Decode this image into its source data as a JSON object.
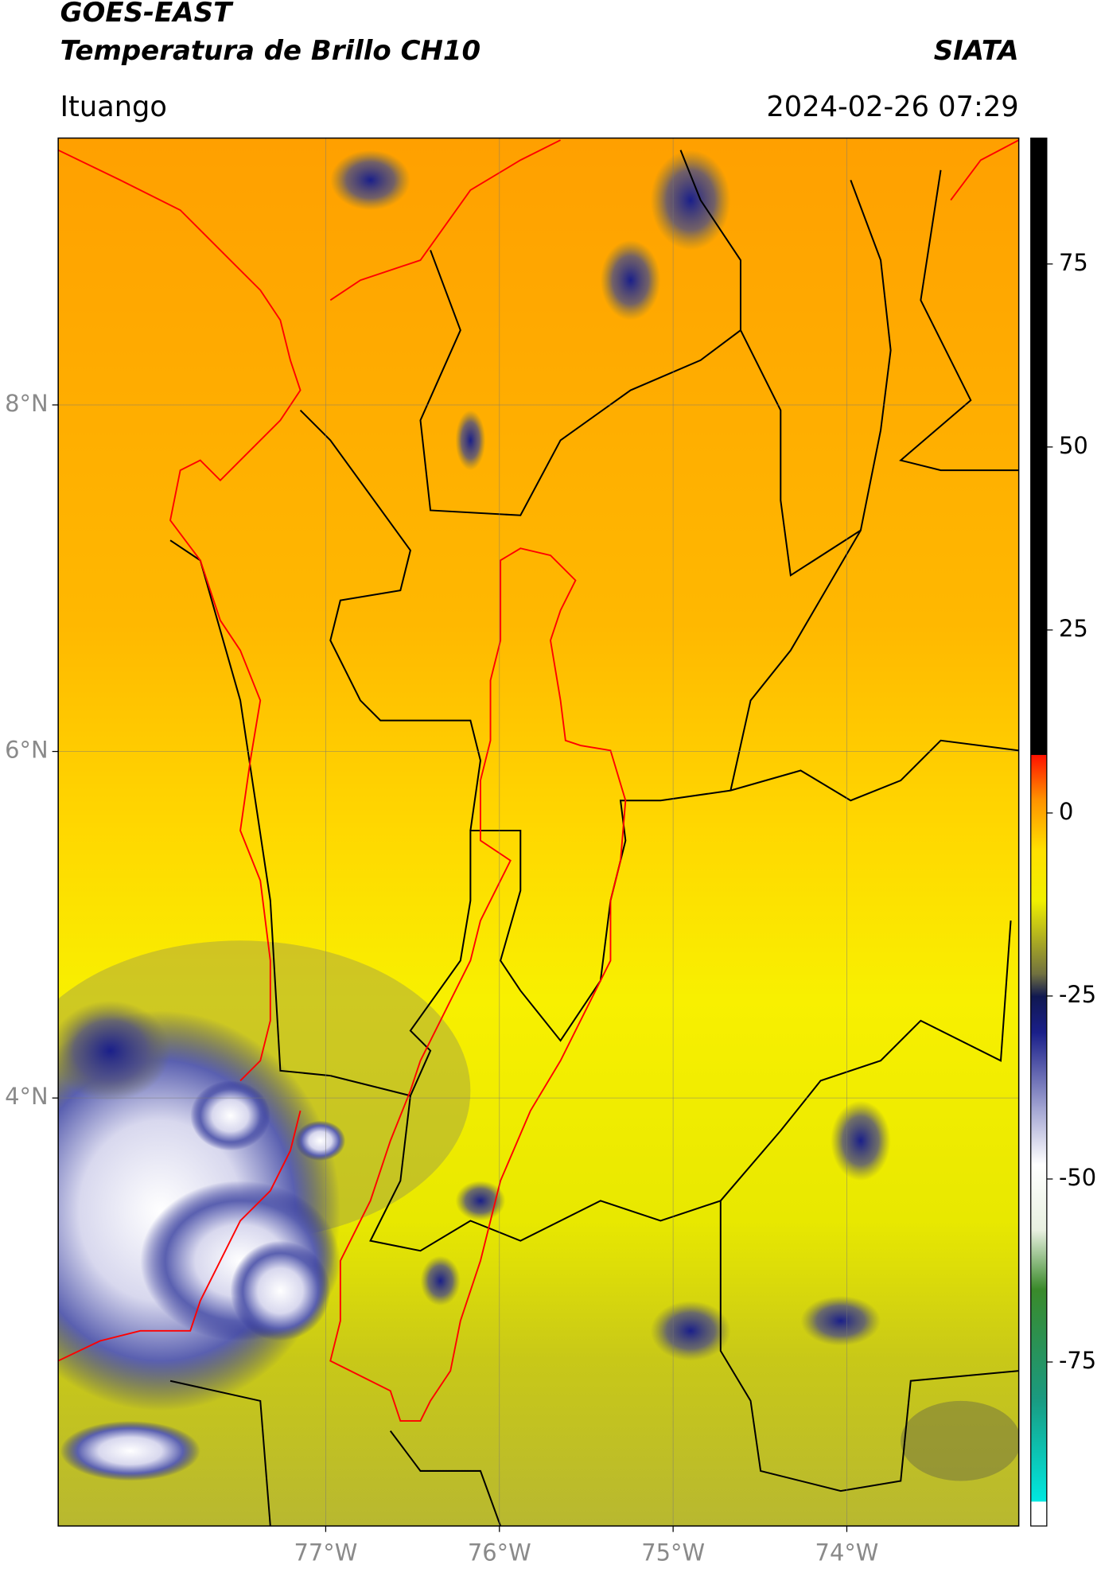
{
  "header": {
    "title": "GOES-EAST",
    "subtitle": "Temperatura de Brillo CH10",
    "source": "SIATA",
    "location": "Ituango",
    "datetime": "2024-02-26 07:29"
  },
  "map": {
    "xlim": [
      -78.54,
      -73.01
    ],
    "ylim": [
      1.53,
      9.54
    ],
    "xticks": [
      {
        "value": -77,
        "label": "77°W"
      },
      {
        "value": -76,
        "label": "76°W"
      },
      {
        "value": -75,
        "label": "75°W"
      },
      {
        "value": -74,
        "label": "74°W"
      }
    ],
    "yticks": [
      {
        "value": 4,
        "label": "4°N"
      },
      {
        "value": 6,
        "label": "6°N"
      },
      {
        "value": 8,
        "label": "8°N"
      }
    ],
    "grid": true
  },
  "colorbar": {
    "lim": [
      -97.4,
      92.2
    ],
    "ticks": [
      -75,
      -50,
      -25,
      0,
      25,
      50,
      75
    ],
    "stops": [
      {
        "value": -97.4,
        "color": "#ffffff"
      },
      {
        "value": -94,
        "color": "#ffffff"
      },
      {
        "value": -94,
        "color": "#00e8e0"
      },
      {
        "value": -80,
        "color": "#1a9a80"
      },
      {
        "value": -65,
        "color": "#3a8a2a"
      },
      {
        "value": -57,
        "color": "#e8f0e0"
      },
      {
        "value": -48,
        "color": "#ffffff"
      },
      {
        "value": -40,
        "color": "#9ea0d0"
      },
      {
        "value": -30,
        "color": "#1a1f8a"
      },
      {
        "value": -25,
        "color": "#101850"
      },
      {
        "value": -22,
        "color": "#707040"
      },
      {
        "value": -12,
        "color": "#f0f000"
      },
      {
        "value": -5,
        "color": "#ffe000"
      },
      {
        "value": 2,
        "color": "#ff9000"
      },
      {
        "value": 8,
        "color": "#ff1000"
      },
      {
        "value": 8,
        "color": "#000000"
      },
      {
        "value": 92.2,
        "color": "#000000"
      }
    ]
  }
}
